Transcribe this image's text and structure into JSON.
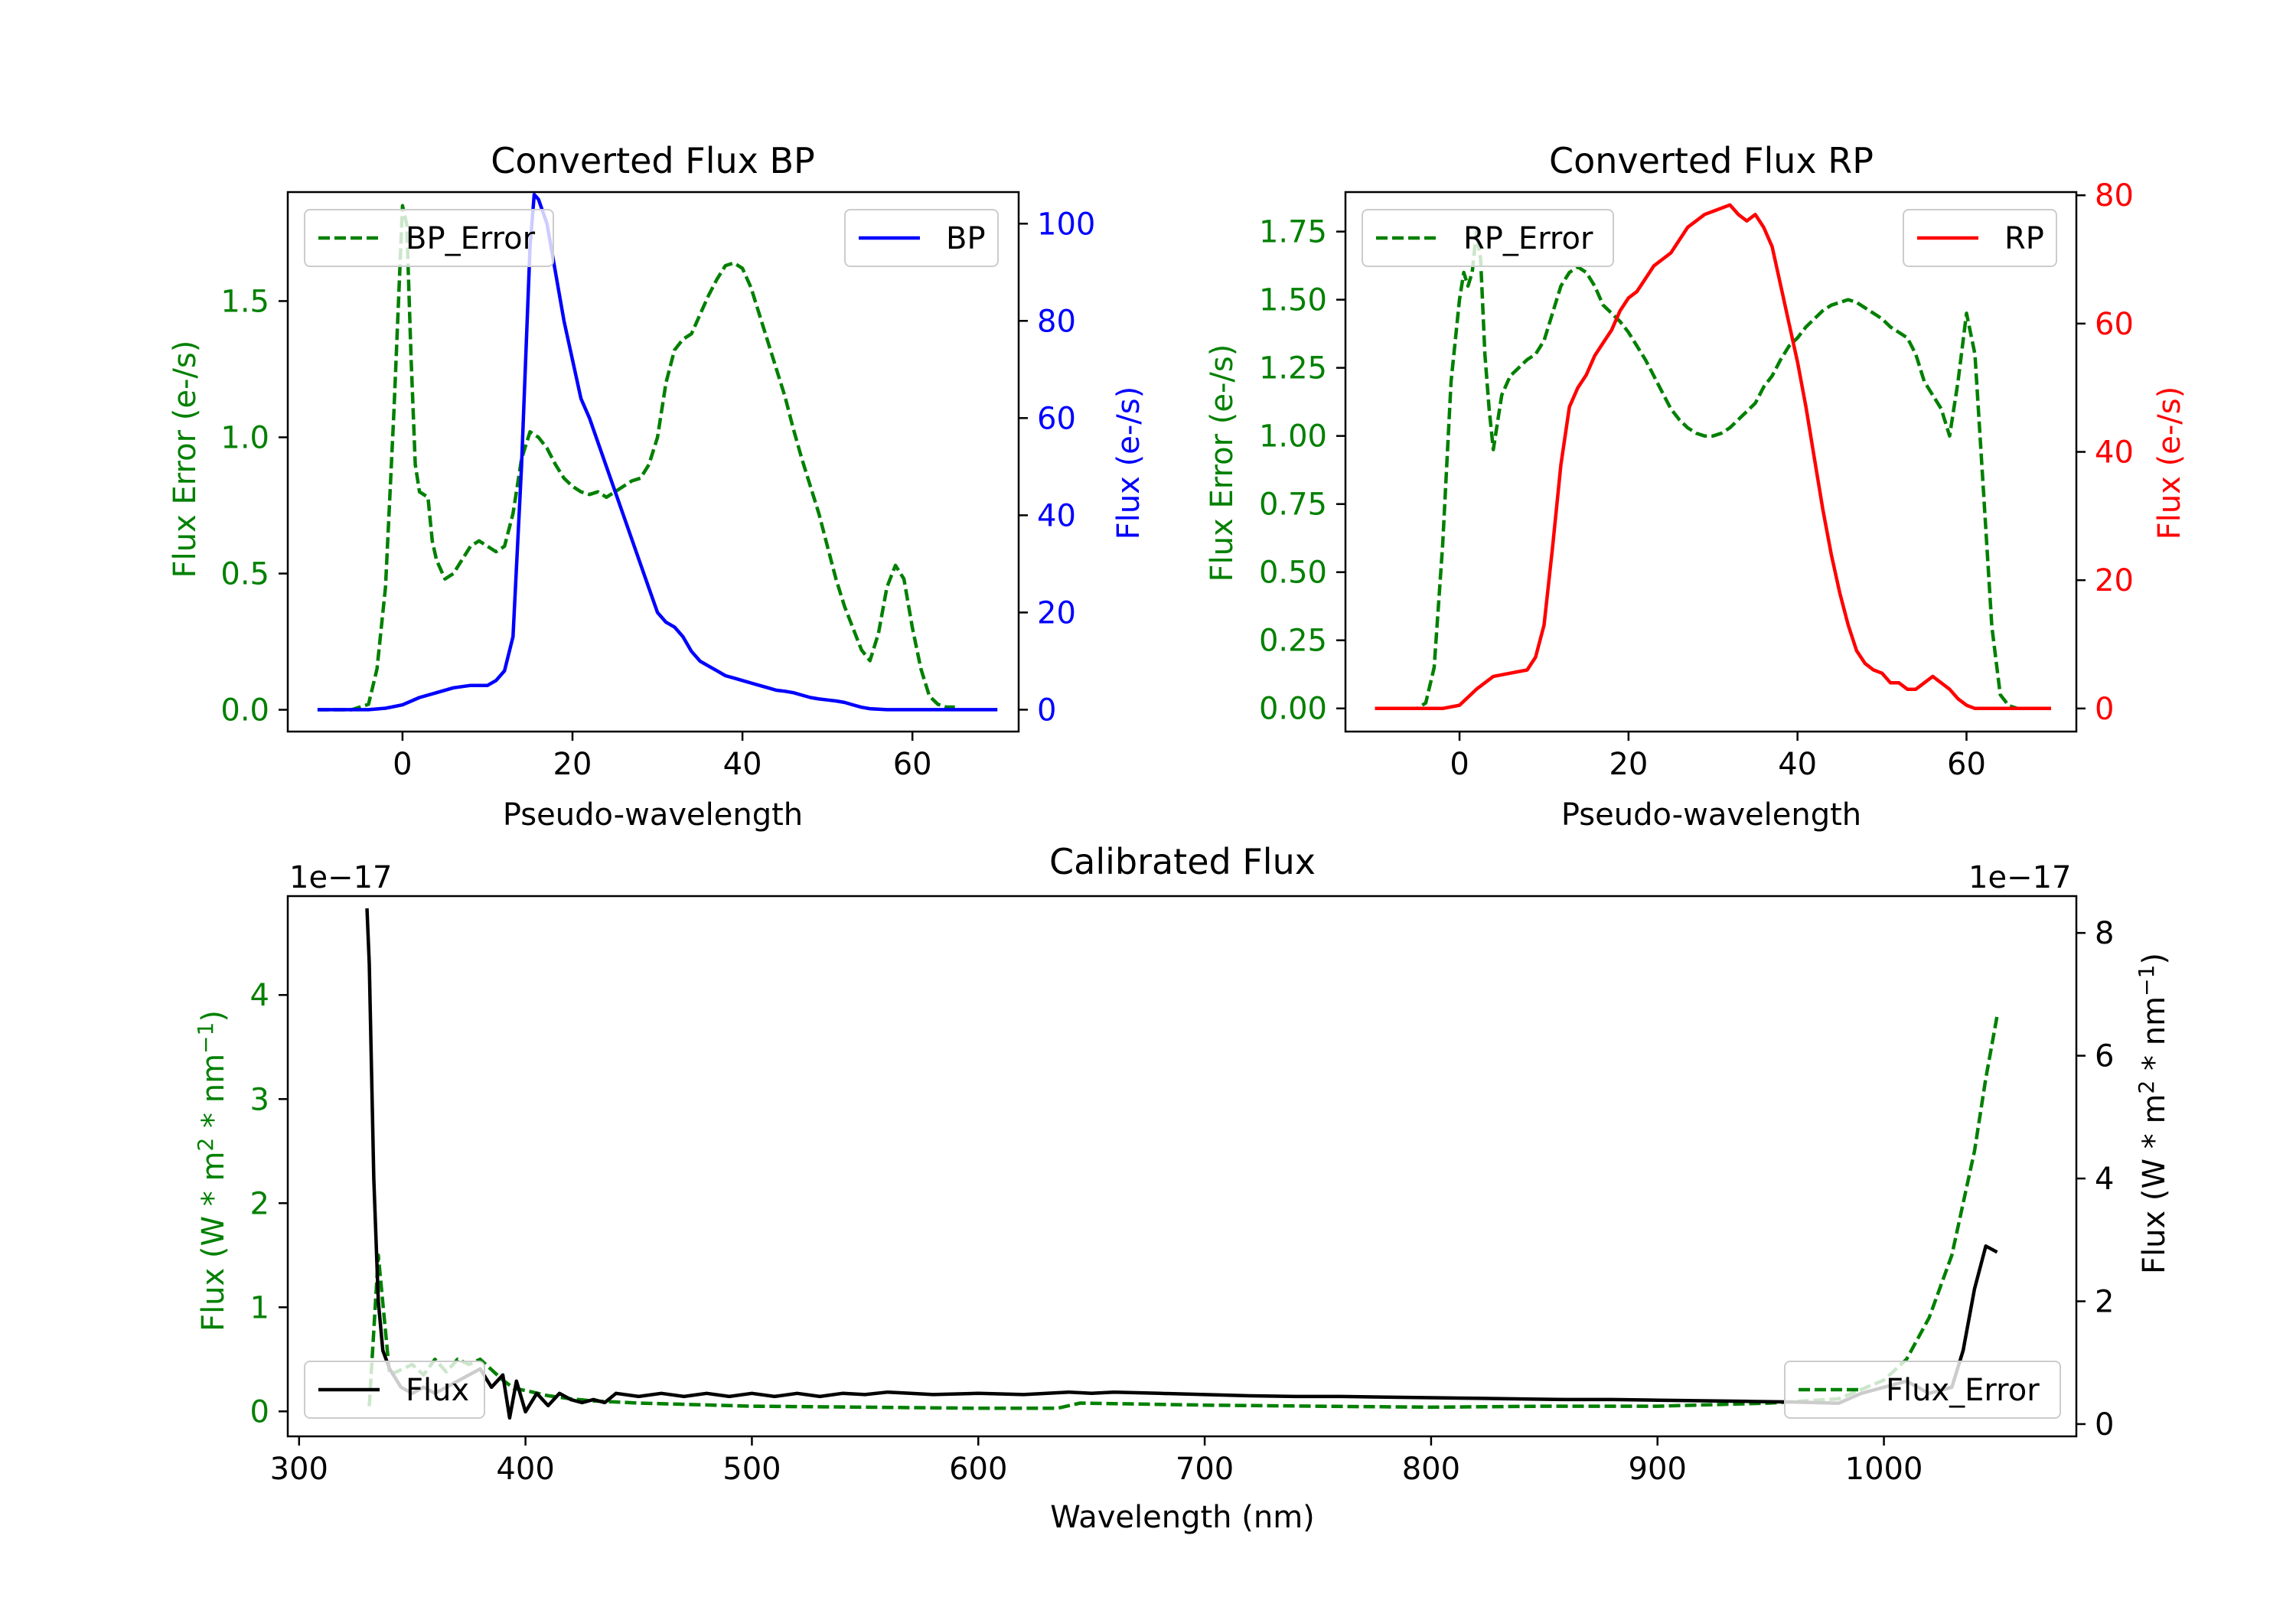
{
  "figure": {
    "background": "#ffffff"
  },
  "chart_data": [
    {
      "id": "bp",
      "type": "line",
      "title": "Converted Flux BP",
      "xlabel": "Pseudo-wavelength",
      "ylabel": "Flux Error (e-/s)",
      "y2label": "Flux (e-/s)",
      "xlim": [
        -13.5,
        72.5
      ],
      "ylim": [
        -0.08,
        1.9
      ],
      "y2lim": [
        -4.5,
        106.5
      ],
      "xticks": [
        0,
        20,
        40,
        60
      ],
      "yticks": [
        0.0,
        0.5,
        1.0,
        1.5
      ],
      "ytick_labels": [
        "0.0",
        "0.5",
        "1.0",
        "1.5"
      ],
      "y2ticks": [
        0,
        20,
        40,
        60,
        80,
        100
      ],
      "y_color": "#008000",
      "y2_color": "#0000ff",
      "series": [
        {
          "name": "BP_Error",
          "axis": "left",
          "color": "#008000",
          "style": "dashed",
          "x": [
            -10,
            -6,
            -4,
            -3,
            -2,
            -1,
            0,
            0.5,
            1,
            1.5,
            2,
            3,
            3.5,
            4,
            5,
            6,
            7,
            8,
            9,
            10,
            11,
            12,
            13,
            14,
            15,
            16,
            17,
            18,
            19,
            20,
            21,
            22,
            23,
            24,
            25,
            26,
            27,
            28,
            29,
            30,
            31,
            32,
            33,
            34,
            35,
            36,
            37,
            38,
            39,
            40,
            41,
            42,
            43,
            44,
            45,
            46,
            47,
            48,
            49,
            50,
            51,
            52,
            53,
            54,
            55,
            56,
            57,
            58,
            59,
            60,
            61,
            62,
            63,
            64,
            65
          ],
          "y": [
            0,
            0,
            0.02,
            0.15,
            0.45,
            1.1,
            1.85,
            1.78,
            1.3,
            0.9,
            0.8,
            0.78,
            0.62,
            0.55,
            0.48,
            0.5,
            0.55,
            0.6,
            0.62,
            0.6,
            0.58,
            0.6,
            0.72,
            0.92,
            1.02,
            1.0,
            0.96,
            0.9,
            0.85,
            0.82,
            0.8,
            0.79,
            0.8,
            0.78,
            0.8,
            0.82,
            0.84,
            0.85,
            0.9,
            1.0,
            1.2,
            1.32,
            1.36,
            1.38,
            1.45,
            1.52,
            1.58,
            1.63,
            1.64,
            1.62,
            1.55,
            1.45,
            1.35,
            1.25,
            1.15,
            1.03,
            0.92,
            0.82,
            0.72,
            0.6,
            0.48,
            0.38,
            0.3,
            0.22,
            0.18,
            0.28,
            0.45,
            0.53,
            0.48,
            0.3,
            0.15,
            0.05,
            0.02,
            0.01,
            0.01
          ]
        },
        {
          "name": "BP",
          "axis": "right",
          "color": "#0000ff",
          "style": "solid",
          "x": [
            -10,
            -6,
            -4,
            -2,
            0,
            2,
            4,
            6,
            8,
            10,
            11,
            12,
            13,
            14,
            15,
            15.5,
            16,
            17,
            18,
            19,
            20,
            21,
            22,
            23,
            24,
            25,
            26,
            27,
            28,
            29,
            30,
            31,
            32,
            33,
            34,
            35,
            36,
            37,
            38,
            39,
            40,
            41,
            42,
            43,
            44,
            45,
            46,
            47,
            48,
            49,
            50,
            51,
            52,
            53,
            54,
            55,
            56,
            57,
            58,
            59,
            60,
            61,
            62,
            63,
            64,
            65,
            66,
            67,
            68,
            69,
            70
          ],
          "y": [
            0,
            0,
            0,
            0.3,
            1,
            2.5,
            3.5,
            4.5,
            5,
            5,
            6,
            8,
            15,
            50,
            95,
            106,
            105,
            100,
            90,
            80,
            72,
            64,
            60,
            55,
            50,
            45,
            40,
            35,
            30,
            25,
            20,
            18,
            17,
            15,
            12,
            10,
            9,
            8,
            7,
            6.5,
            6,
            5.5,
            5,
            4.5,
            4,
            3.8,
            3.5,
            3,
            2.5,
            2.2,
            2,
            1.8,
            1.5,
            1,
            0.5,
            0.2,
            0.1,
            0,
            0,
            0,
            0,
            0,
            0,
            0,
            0,
            0,
            0,
            0,
            0,
            0,
            0
          ]
        }
      ],
      "legend": [
        {
          "label": "BP_Error",
          "placement": "upper left"
        },
        {
          "label": "BP",
          "placement": "upper right"
        }
      ]
    },
    {
      "id": "rp",
      "type": "line",
      "title": "Converted Flux RP",
      "xlabel": "Pseudo-wavelength",
      "ylabel": "Flux Error (e-/s)",
      "y2label": "Flux (e-/s)",
      "xlim": [
        -13.5,
        73
      ],
      "ylim": [
        -0.085,
        1.895
      ],
      "y2lim": [
        -3.6,
        80.5
      ],
      "xticks": [
        0,
        20,
        40,
        60
      ],
      "yticks": [
        0.0,
        0.25,
        0.5,
        0.75,
        1.0,
        1.25,
        1.5,
        1.75
      ],
      "ytick_labels": [
        "0.00",
        "0.25",
        "0.50",
        "0.75",
        "1.00",
        "1.25",
        "1.50",
        "1.75"
      ],
      "y2ticks": [
        0,
        20,
        40,
        60,
        80
      ],
      "y_color": "#008000",
      "y2_color": "#ff0000",
      "series": [
        {
          "name": "RP_Error",
          "axis": "left",
          "color": "#008000",
          "style": "dashed",
          "x": [
            -10,
            -5,
            -4,
            -3,
            -2,
            -1,
            0,
            0.5,
            1,
            1.5,
            2,
            2.5,
            3,
            3.5,
            4,
            5,
            6,
            7,
            8,
            9,
            10,
            11,
            12,
            13,
            14,
            15,
            16,
            17,
            18,
            19,
            20,
            21,
            22,
            23,
            24,
            25,
            26,
            27,
            28,
            29,
            30,
            31,
            32,
            33,
            34,
            35,
            36,
            37,
            38,
            39,
            40,
            41,
            42,
            43,
            44,
            45,
            46,
            47,
            48,
            49,
            50,
            51,
            52,
            53,
            54,
            55,
            56,
            57,
            58,
            59,
            60,
            61,
            62,
            63,
            64,
            65,
            66,
            68,
            70
          ],
          "y": [
            0,
            0,
            0.02,
            0.15,
            0.6,
            1.2,
            1.5,
            1.6,
            1.55,
            1.6,
            1.75,
            1.65,
            1.3,
            1.1,
            0.95,
            1.15,
            1.22,
            1.25,
            1.28,
            1.3,
            1.35,
            1.45,
            1.55,
            1.6,
            1.62,
            1.6,
            1.55,
            1.48,
            1.45,
            1.42,
            1.38,
            1.33,
            1.28,
            1.22,
            1.16,
            1.1,
            1.06,
            1.03,
            1.01,
            1.0,
            1.0,
            1.01,
            1.03,
            1.06,
            1.09,
            1.12,
            1.18,
            1.22,
            1.28,
            1.33,
            1.36,
            1.4,
            1.43,
            1.46,
            1.48,
            1.49,
            1.5,
            1.49,
            1.47,
            1.45,
            1.43,
            1.4,
            1.38,
            1.36,
            1.3,
            1.2,
            1.15,
            1.1,
            1.0,
            1.2,
            1.45,
            1.3,
            0.8,
            0.3,
            0.05,
            0.01,
            0,
            0,
            0
          ]
        },
        {
          "name": "RP",
          "axis": "right",
          "color": "#ff0000",
          "style": "solid",
          "x": [
            -10,
            -5,
            -2,
            0,
            2,
            4,
            6,
            8,
            9,
            10,
            11,
            12,
            13,
            14,
            15,
            16,
            17,
            18,
            19,
            20,
            21,
            22,
            23,
            24,
            25,
            26,
            27,
            28,
            29,
            30,
            31,
            32,
            33,
            34,
            35,
            36,
            37,
            38,
            39,
            40,
            41,
            42,
            43,
            44,
            45,
            46,
            47,
            48,
            49,
            50,
            51,
            52,
            53,
            54,
            55,
            56,
            57,
            58,
            59,
            60,
            61,
            62,
            63,
            64,
            66,
            68,
            70
          ],
          "y": [
            0,
            0,
            0,
            0.5,
            3,
            5,
            5.5,
            6,
            8,
            13,
            25,
            38,
            47,
            50,
            52,
            55,
            57,
            59,
            62,
            64,
            65,
            67,
            69,
            70,
            71,
            73,
            75,
            76,
            77,
            77.5,
            78,
            78.5,
            77,
            76,
            77,
            75,
            72,
            66,
            60,
            54,
            47,
            39,
            31,
            24,
            18,
            13,
            9,
            7,
            6,
            5.5,
            4,
            4,
            3,
            3,
            4,
            5,
            4,
            3,
            1.5,
            0.5,
            0,
            0,
            0,
            0,
            0,
            0,
            0
          ]
        }
      ],
      "legend": [
        {
          "label": "RP_Error",
          "placement": "upper left"
        },
        {
          "label": "RP",
          "placement": "upper right"
        }
      ]
    },
    {
      "id": "cal",
      "type": "line",
      "title": "Calibrated Flux",
      "xlabel": "Wavelength (nm)",
      "ylabel": "Flux (W * m² * nm⁻¹)",
      "y2label": "Flux (W * m² * nm⁻¹)",
      "ylabel_parts": [
        "Flux (W * m",
        "2",
        " * nm",
        "−1",
        ")"
      ],
      "offset_text": "1e−17",
      "xlim": [
        295,
        1085
      ],
      "ylim": [
        -0.24,
        4.95
      ],
      "y2lim": [
        -0.2,
        8.6
      ],
      "xticks": [
        300,
        400,
        500,
        600,
        700,
        800,
        900,
        1000
      ],
      "yticks": [
        0,
        1,
        2,
        3,
        4
      ],
      "y2ticks": [
        0,
        2,
        4,
        6,
        8
      ],
      "y_color": "#008000",
      "y2_color": "#000000",
      "series": [
        {
          "name": "Flux_Error",
          "axis": "left",
          "color": "#008000",
          "style": "dashed",
          "x": [
            331,
            335,
            340,
            345,
            350,
            355,
            360,
            365,
            370,
            375,
            380,
            385,
            390,
            395,
            400,
            410,
            420,
            430,
            450,
            500,
            550,
            600,
            635,
            645,
            700,
            750,
            800,
            850,
            900,
            950,
            980,
            1000,
            1010,
            1020,
            1030,
            1040,
            1045,
            1050
          ],
          "y": [
            0.05,
            1.5,
            0.35,
            0.4,
            0.45,
            0.35,
            0.5,
            0.38,
            0.5,
            0.45,
            0.5,
            0.4,
            0.3,
            0.22,
            0.2,
            0.15,
            0.12,
            0.1,
            0.08,
            0.05,
            0.04,
            0.03,
            0.03,
            0.08,
            0.06,
            0.05,
            0.04,
            0.05,
            0.05,
            0.08,
            0.12,
            0.3,
            0.5,
            0.9,
            1.5,
            2.5,
            3.2,
            3.8
          ]
        },
        {
          "name": "Flux",
          "axis": "right",
          "color": "#000000",
          "style": "solid",
          "x": [
            330,
            331,
            333,
            335,
            337,
            340,
            345,
            350,
            355,
            360,
            365,
            370,
            375,
            380,
            385,
            390,
            393,
            396,
            400,
            405,
            410,
            415,
            420,
            425,
            430,
            435,
            440,
            450,
            460,
            470,
            480,
            490,
            500,
            510,
            520,
            530,
            540,
            550,
            560,
            570,
            580,
            600,
            620,
            640,
            650,
            660,
            680,
            700,
            720,
            740,
            760,
            780,
            800,
            820,
            840,
            860,
            880,
            900,
            920,
            940,
            960,
            970,
            980,
            990,
            1000,
            1010,
            1020,
            1030,
            1035,
            1040,
            1045,
            1050
          ],
          "y": [
            8.4,
            7.5,
            4,
            2,
            1.2,
            0.9,
            0.6,
            0.5,
            0.6,
            0.5,
            0.6,
            0.7,
            0.8,
            0.9,
            0.6,
            0.8,
            0.1,
            0.7,
            0.2,
            0.5,
            0.3,
            0.5,
            0.4,
            0.35,
            0.4,
            0.35,
            0.5,
            0.45,
            0.5,
            0.45,
            0.5,
            0.45,
            0.5,
            0.45,
            0.5,
            0.45,
            0.5,
            0.48,
            0.52,
            0.5,
            0.48,
            0.5,
            0.48,
            0.52,
            0.5,
            0.52,
            0.5,
            0.48,
            0.46,
            0.45,
            0.45,
            0.44,
            0.43,
            0.42,
            0.41,
            0.4,
            0.4,
            0.39,
            0.38,
            0.37,
            0.36,
            0.35,
            0.34,
            0.5,
            0.6,
            0.7,
            0.5,
            0.6,
            1.2,
            2.2,
            2.9,
            2.8
          ]
        }
      ],
      "legend": [
        {
          "label": "Flux",
          "placement": "lower left"
        },
        {
          "label": "Flux_Error",
          "placement": "lower right"
        }
      ]
    }
  ]
}
